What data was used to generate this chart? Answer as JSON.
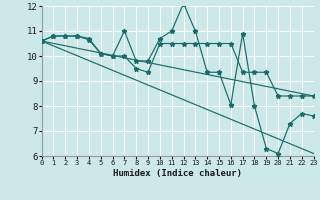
{
  "xlabel": "Humidex (Indice chaleur)",
  "xlim": [
    0,
    23
  ],
  "ylim": [
    6,
    12
  ],
  "yticks": [
    6,
    7,
    8,
    9,
    10,
    11,
    12
  ],
  "xticks": [
    0,
    1,
    2,
    3,
    4,
    5,
    6,
    7,
    8,
    9,
    10,
    11,
    12,
    13,
    14,
    15,
    16,
    17,
    18,
    19,
    20,
    21,
    22,
    23
  ],
  "bg_color": "#cce8e8",
  "grid_color": "#ffffff",
  "line_color": "#1a6b6b",
  "lines": [
    {
      "x": [
        0,
        1,
        2,
        3,
        4,
        5,
        6,
        7,
        8,
        9,
        10,
        11,
        12,
        13,
        14,
        15,
        16,
        17,
        18,
        19,
        20,
        21,
        22,
        23
      ],
      "y": [
        10.6,
        10.8,
        10.8,
        10.8,
        10.7,
        10.1,
        10.0,
        11.0,
        9.8,
        9.8,
        10.7,
        11.0,
        12.1,
        11.0,
        9.35,
        9.35,
        8.05,
        10.9,
        8.0,
        6.3,
        6.1,
        7.3,
        7.7,
        7.6
      ]
    },
    {
      "x": [
        0,
        1,
        2,
        3,
        4,
        5,
        6,
        7,
        8,
        9,
        10,
        11,
        12,
        13,
        14,
        15,
        16,
        17,
        18,
        19,
        20,
        21,
        22,
        23
      ],
      "y": [
        10.6,
        10.8,
        10.8,
        10.8,
        10.65,
        10.1,
        10.0,
        10.0,
        9.5,
        9.35,
        10.5,
        10.5,
        10.5,
        10.5,
        10.5,
        10.5,
        10.5,
        9.35,
        9.35,
        9.35,
        8.4,
        8.4,
        8.4,
        8.4
      ]
    },
    {
      "x": [
        0,
        23
      ],
      "y": [
        10.6,
        8.4
      ]
    },
    {
      "x": [
        0,
        23
      ],
      "y": [
        10.6,
        6.1
      ]
    }
  ]
}
